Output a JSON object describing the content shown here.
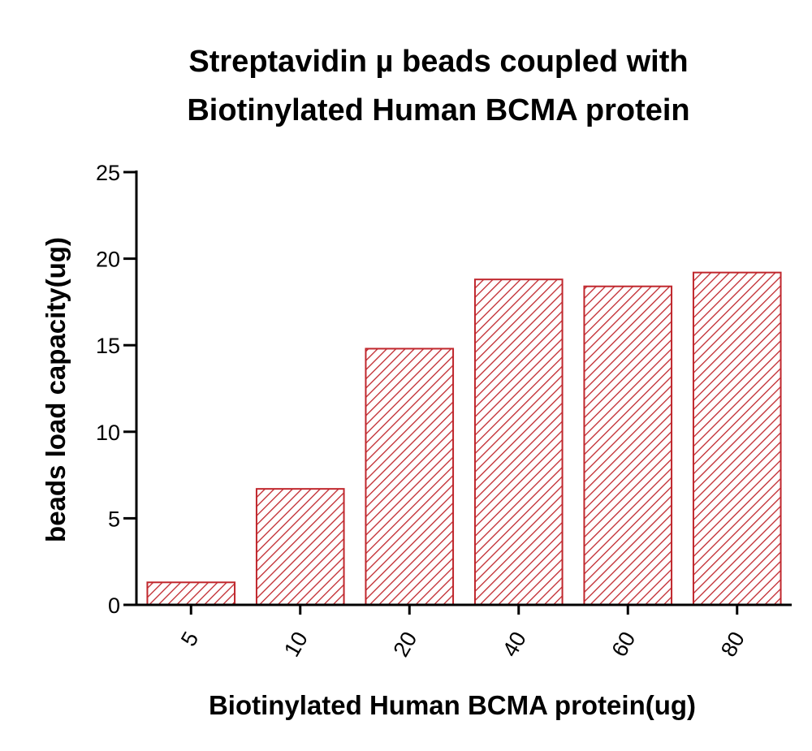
{
  "chart_data": {
    "type": "bar",
    "title_lines": [
      "Streptavidin µ beads coupled with",
      "Biotinylated Human BCMA protein"
    ],
    "xlabel": "Biotinylated Human BCMA protein(ug)",
    "ylabel": "beads load capacity(ug)",
    "categories": [
      "5",
      "10",
      "20",
      "40",
      "60",
      "80"
    ],
    "values": [
      1.3,
      6.7,
      14.8,
      18.8,
      18.4,
      19.2
    ],
    "ylim": [
      0,
      25
    ],
    "yticks": [
      0,
      5,
      10,
      15,
      20,
      25
    ],
    "grid": false,
    "bar_color": "#c0272d",
    "bar_fill": "diagonal-hatch"
  }
}
